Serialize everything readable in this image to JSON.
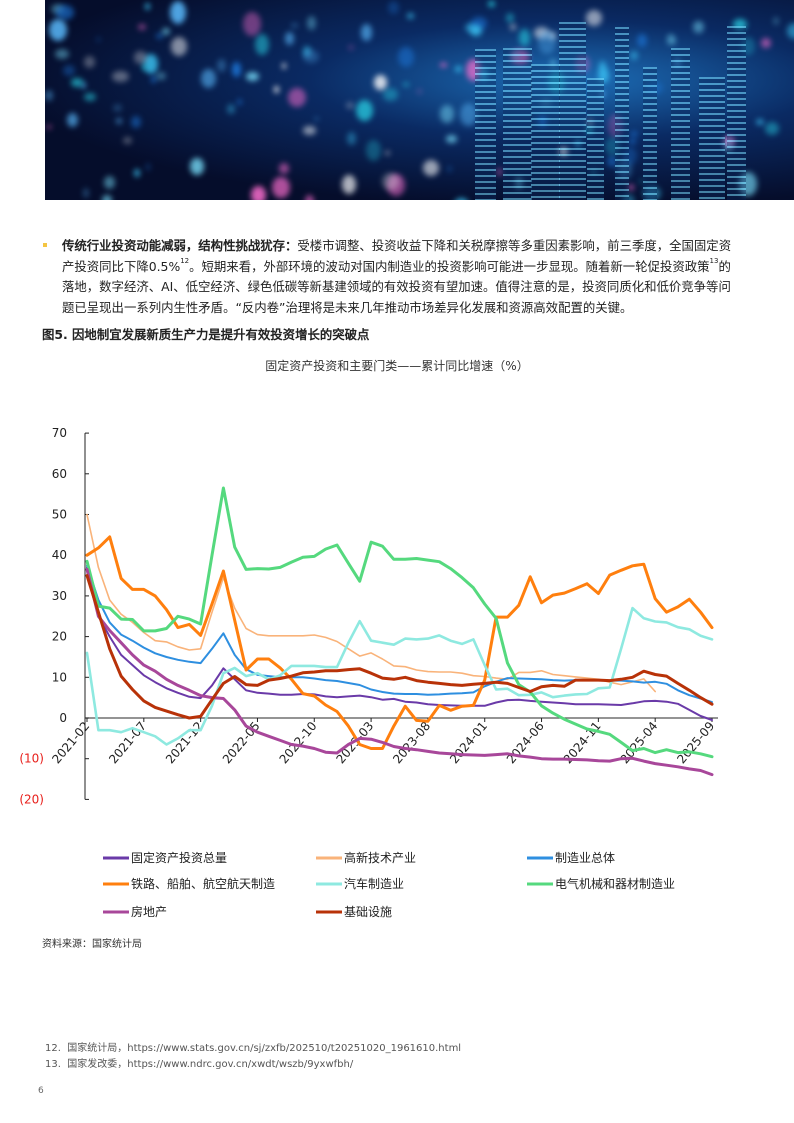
{
  "paragraph": {
    "bold_lead": "传统行业投资动能减弱，结构性挑战犹存：",
    "text_1": "受楼市调整、投资收益下降和关税摩擦等多重因素影响，前三季度，全国固定资产投资同比下降0.5%",
    "ref_1": "12",
    "text_2": "。短期来看，外部环境的波动对国内制造业的投资影响可能进一步显现。随着新一轮促投资政策",
    "ref_2": "13",
    "text_3": "的落地，数字经济、AI、低空经济、绿色低碳等新基建领域的有效投资有望加速。值得注意的是，投资同质化和低价竞争等问题已呈现出一系列内生性矛盾。“反内卷”治理将是未来几年推动市场差异化发展和资源高效配置的关键。"
  },
  "figure_title": "图5. 因地制宜发展新质生产力是提升有效投资增长的突破点",
  "source": "资料来源：国家统计局",
  "footnotes": [
    {
      "num": "12.",
      "text": "国家统计局，https://www.stats.gov.cn/sj/zxfb/202510/t20251020_1961610.html"
    },
    {
      "num": "13.",
      "text": "国家发改委，https://www.ndrc.gov.cn/xwdt/wszb/9yxwfbh/"
    }
  ],
  "page_number": "6",
  "chart_data": {
    "type": "line",
    "title": "固定资产投资和主要门类——累计同比增速（%）",
    "ylim": [
      -20,
      70
    ],
    "y_ticks": [
      70,
      60,
      50,
      40,
      30,
      20,
      10,
      0,
      -10,
      -20
    ],
    "y_tick_labels": [
      "70",
      "60",
      "50",
      "40",
      "30",
      "20",
      "10",
      "0",
      "(10)",
      "(20)"
    ],
    "negative_label_color": "#e8201c",
    "x_start": "2021-02",
    "x_end": "2025-09",
    "x_tick_labels": [
      "2021-02",
      "2021-07",
      "2021-12",
      "2022-05",
      "2022-10",
      "2023-03",
      "2023-08",
      "2024-01",
      "2024-06",
      "2024-11",
      "2025-04",
      "2025-09"
    ],
    "legend_position": "bottom",
    "series": [
      {
        "name": "固定资产投资总量",
        "color": "#6a3aa8",
        "width": 2,
        "values": [
          37,
          25,
          20,
          15.5,
          13,
          10.5,
          8.8,
          7.3,
          6.2,
          5.2,
          4.9,
          8,
          12.2,
          9.5,
          6.8,
          6.2,
          6,
          5.7,
          5.7,
          5.9,
          5.8,
          5.3,
          5.1,
          5.3,
          5.5,
          5.1,
          4.5,
          4.7,
          4,
          3.8,
          3.4,
          3.2,
          3.1,
          3,
          3,
          3,
          3.8,
          4.4,
          4.5,
          4.2,
          4,
          3.8,
          3.6,
          3.4,
          3.4,
          3.4,
          3.3,
          3.2,
          3.6,
          4.1,
          4.2,
          4,
          3.5,
          2,
          0.5,
          -0.5
        ]
      },
      {
        "name": "高新技术产业",
        "color": "#f9b37a",
        "width": 1.6,
        "values": [
          50,
          37,
          29,
          25.5,
          23.5,
          21,
          19,
          18.7,
          17.5,
          16.7,
          17,
          26,
          34.5,
          27,
          22,
          20.5,
          20.2,
          20.2,
          20.2,
          20.2,
          20.4,
          19.8,
          18.8,
          17,
          15.2,
          16,
          14.5,
          12.8,
          12.6,
          11.8,
          11.4,
          11.3,
          11.3,
          11,
          10.4,
          10.2,
          9.8,
          9.5,
          11.2,
          11.2,
          11.6,
          10.7,
          10.4,
          10.1,
          9.8,
          9.5,
          8.8,
          8.2,
          8.9,
          9.6,
          6.5
        ]
      },
      {
        "name": "制造业总体",
        "color": "#2e8fe0",
        "width": 2,
        "values": [
          37.5,
          29,
          23.5,
          20.5,
          19,
          17.3,
          15.9,
          15,
          14.3,
          13.8,
          13.5,
          17,
          20.8,
          15.5,
          12,
          10.6,
          10.3,
          10,
          10,
          10,
          9.7,
          9.3,
          9.1,
          8.6,
          8.1,
          7,
          6.4,
          6,
          5.9,
          5.9,
          5.7,
          5.8,
          6,
          6.1,
          6.3,
          7.8,
          8.9,
          9.8,
          9.7,
          9.6,
          9.5,
          9.3,
          9.2,
          9.3,
          9.3,
          9.3,
          9.2,
          9.2,
          9,
          8.7,
          8.9,
          8.4,
          6.8,
          5.6,
          4.8,
          3.9
        ]
      },
      {
        "name": "铁路、船舶、航空航天制造",
        "color": "#ff7f0e",
        "width": 3,
        "values": [
          40,
          41.8,
          44.5,
          34.3,
          31.6,
          31.6,
          30,
          26.6,
          22.2,
          23,
          20.3,
          28,
          36.1,
          24,
          11.8,
          14.5,
          14.5,
          12.3,
          9.5,
          6,
          5.4,
          3.2,
          1.6,
          -2,
          -6.5,
          -7.5,
          -7.5,
          -2,
          2.9,
          -0.6,
          -0.8,
          3.1,
          1.9,
          2.9,
          3.1,
          9.3,
          24.8,
          24.8,
          27.7,
          34.7,
          28.3,
          30.2,
          30.7,
          31.8,
          33,
          30.6,
          35.1,
          36.3,
          37.4,
          37.8,
          29.3,
          26,
          27.3,
          29.2,
          26,
          22.2
        ]
      },
      {
        "name": "汽车制造业",
        "color": "#8ee9e0",
        "width": 2.6,
        "values": [
          16,
          -3,
          -3,
          -3.5,
          -2.5,
          -3.5,
          -4.5,
          -6.5,
          -5,
          -3,
          -3,
          3,
          11,
          12.3,
          10.3,
          11,
          9.5,
          10.5,
          12.8,
          12.8,
          12.8,
          12.5,
          12.5,
          18.5,
          23.8,
          19,
          18.5,
          18,
          19.5,
          19.3,
          19.5,
          20.3,
          19,
          18.2,
          19.3,
          13,
          7,
          7.2,
          5.6,
          5.7,
          6.3,
          5.1,
          5.5,
          5.8,
          5.9,
          7.3,
          7.5,
          17,
          27,
          24.5,
          23.7,
          23.5,
          22.3,
          21.8,
          20.2,
          19.3
        ]
      },
      {
        "name": "电气机械和器材制造业",
        "color": "#55d97e",
        "width": 3,
        "values": [
          38.5,
          27.5,
          27,
          24.3,
          24.2,
          21.4,
          21.4,
          22,
          25,
          24.3,
          23.1,
          40,
          56.5,
          42,
          36.5,
          36.7,
          36.6,
          37,
          38.3,
          39.5,
          39.7,
          41.5,
          42.5,
          38,
          33.6,
          43.2,
          42.2,
          39,
          39,
          39.2,
          38.8,
          38.4,
          36.7,
          34.5,
          32,
          28,
          24.5,
          13.5,
          8.2,
          6.4,
          3,
          1.2,
          -0.3,
          -1.5,
          -2.7,
          -3.3,
          -4,
          -6,
          -8,
          -7.5,
          -8.5,
          -7.8,
          -8.5,
          -8.3,
          -8.8,
          -9.5
        ]
      },
      {
        "name": "房地产",
        "color": "#a8479a",
        "width": 3,
        "values": [
          36.5,
          25,
          21.5,
          18.5,
          15.5,
          13,
          11.5,
          9.5,
          8,
          6.8,
          5.5,
          5,
          4.8,
          2,
          -2,
          -3.5,
          -4.5,
          -5.5,
          -6.5,
          -6.9,
          -7.5,
          -8.4,
          -8.6,
          -6.5,
          -5,
          -5.2,
          -6,
          -7,
          -7.5,
          -7.8,
          -8.2,
          -8.6,
          -8.8,
          -9,
          -9.1,
          -9.2,
          -9,
          -8.8,
          -9.3,
          -9.6,
          -10,
          -10.1,
          -10.1,
          -10.2,
          -10.3,
          -10.5,
          -10.6,
          -10,
          -9.9,
          -10.6,
          -11.2,
          -11.6,
          -12,
          -12.5,
          -12.9,
          -13.9
        ]
      },
      {
        "name": "基础设施",
        "color": "#b83208",
        "width": 3,
        "values": [
          35,
          26,
          17,
          10.3,
          7,
          4.2,
          2.6,
          1.7,
          0.8,
          0,
          0.4,
          4.5,
          8.5,
          10.2,
          8.2,
          8,
          9.3,
          9.7,
          10.3,
          11.1,
          11.3,
          11.6,
          11.6,
          11.9,
          12.1,
          11,
          9.8,
          9.5,
          10,
          9.2,
          8.8,
          8.5,
          8.2,
          8,
          8.3,
          8.5,
          8.8,
          8.5,
          7.5,
          6.5,
          7.7,
          8,
          7.8,
          9.3,
          9.3,
          9.3,
          9.2,
          9.5,
          10,
          11.5,
          10.7,
          10.3,
          8.5,
          6.8,
          5,
          3.4
        ]
      }
    ]
  }
}
